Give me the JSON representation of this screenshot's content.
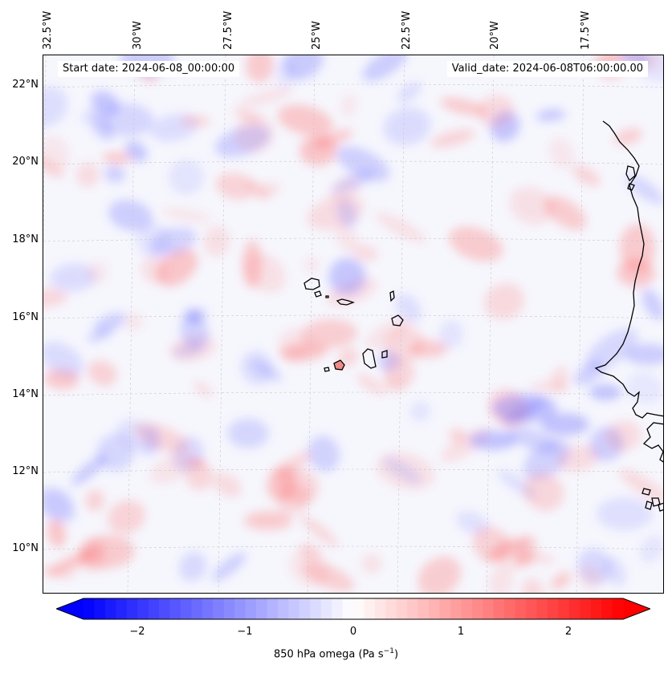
{
  "header": {
    "start_date": "Start date: 2024-06-08_00:00:00",
    "valid_date": "Valid_date: 2024-06-08T06:00:00.00"
  },
  "axes": {
    "lat_labels": [
      "22°N",
      "20°N",
      "18°N",
      "16°N",
      "14°N",
      "12°N",
      "10°N"
    ],
    "lon_labels": [
      "32.5°W",
      "30°W",
      "27.5°W",
      "25°W",
      "22.5°W",
      "20°W",
      "17.5°W"
    ]
  },
  "colorbar": {
    "label": "850 hPa omega (Pa s",
    "label_sup": "−1",
    "label_end": ")",
    "ticks": [
      "−2",
      "−1",
      "0",
      "1",
      "2"
    ],
    "range": [
      -2.5,
      2.5
    ],
    "min_color": "#0000ff",
    "mid_color": "#ffffff",
    "max_color": "#ff0000"
  },
  "map": {
    "field": "850 hPa omega",
    "coastline_color": "#000000",
    "gridline_color": "#c8c8c8"
  }
}
